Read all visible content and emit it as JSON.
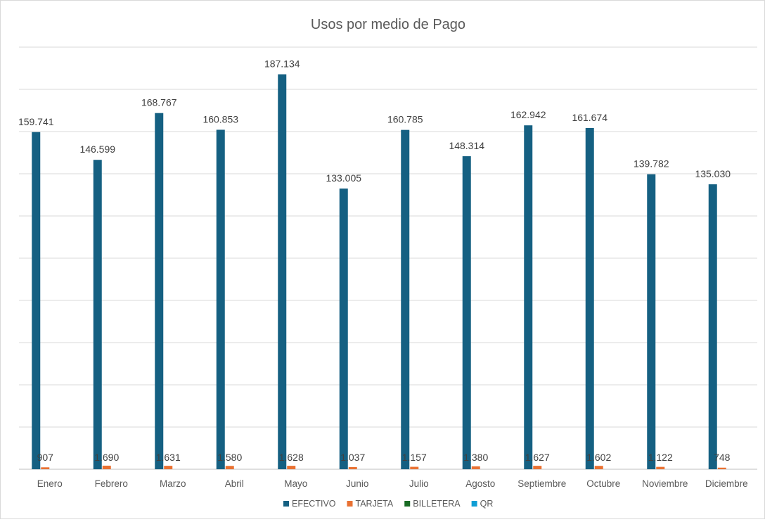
{
  "chart_data": {
    "type": "bar",
    "title": "Usos por medio de Pago",
    "xlabel": "",
    "ylabel": "",
    "ylim": [
      0,
      200000
    ],
    "grid": true,
    "legend_position": "bottom",
    "categories": [
      "Enero",
      "Febrero",
      "Marzo",
      "Abril",
      "Mayo",
      "Junio",
      "Julio",
      "Agosto",
      "Septiembre",
      "Octubre",
      "Noviembre",
      "Diciembre"
    ],
    "series": [
      {
        "name": "EFECTIVO",
        "color": "#156082",
        "values": [
          159741,
          146599,
          168767,
          160853,
          187134,
          133005,
          160785,
          148314,
          162942,
          161674,
          139782,
          135030
        ],
        "labels": [
          "159.741",
          "146.599",
          "168.767",
          "160.853",
          "187.134",
          "133.005",
          "160.785",
          "148.314",
          "162.942",
          "161.674",
          "139.782",
          "135.030"
        ]
      },
      {
        "name": "TARJETA",
        "color": "#e97132",
        "values": [
          907,
          1690,
          1631,
          1580,
          1628,
          1037,
          1157,
          1380,
          1627,
          1602,
          1122,
          748
        ],
        "labels": [
          "907",
          "1.690",
          "1.631",
          "1.580",
          "1.628",
          "1.037",
          "1.157",
          "1.380",
          "1.627",
          "1.602",
          "1.122",
          "748"
        ]
      },
      {
        "name": "BILLETERA",
        "color": "#196b24",
        "values": [
          0,
          0,
          0,
          0,
          0,
          0,
          0,
          0,
          0,
          0,
          0,
          0
        ],
        "labels": []
      },
      {
        "name": "QR",
        "color": "#0f9ed5",
        "values": [
          0,
          0,
          0,
          0,
          0,
          0,
          0,
          0,
          0,
          0,
          0,
          0
        ],
        "labels": []
      }
    ]
  }
}
